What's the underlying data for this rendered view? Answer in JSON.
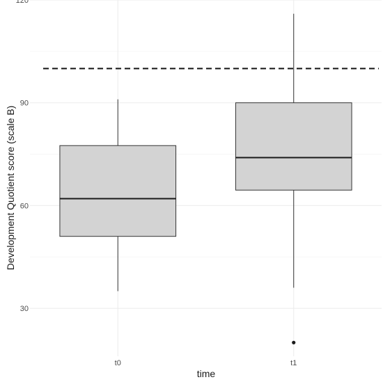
{
  "chart_data": {
    "type": "box",
    "xlabel": "time",
    "ylabel": "Development Quotient score (scale B)",
    "ylim": [
      16,
      120
    ],
    "yticks": [
      30,
      60,
      90,
      120
    ],
    "yminor": [
      45,
      75,
      105
    ],
    "categories": [
      "t0",
      "t1"
    ],
    "boxes": [
      {
        "category": "t0",
        "whisker_low": 35,
        "q1": 51,
        "median": 62,
        "q3": 77.5,
        "whisker_high": 91,
        "outliers": []
      },
      {
        "category": "t1",
        "whisker_low": 36,
        "q1": 64.5,
        "median": 74,
        "q3": 90,
        "whisker_high": 116,
        "outliers": [
          20
        ]
      }
    ],
    "reference_line": {
      "y": 100,
      "style": "dashed"
    },
    "grid": true,
    "legend": "none",
    "colors": {
      "box_fill": "#d3d3d3",
      "box_stroke": "#333333",
      "reference_line": "#111111"
    }
  }
}
